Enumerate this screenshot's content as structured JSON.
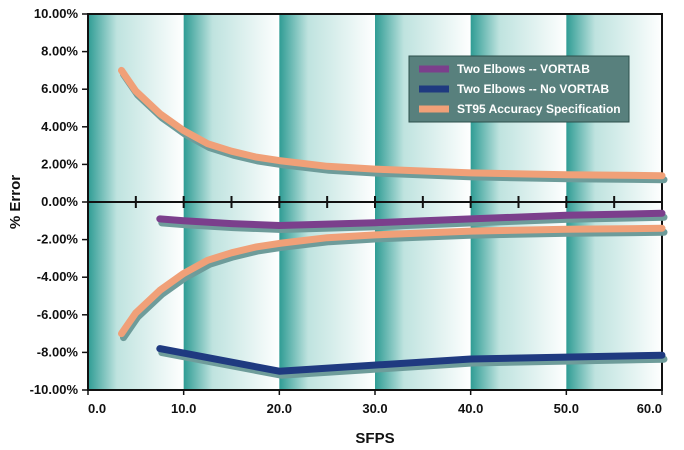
{
  "chart_data": {
    "type": "line",
    "title": "",
    "xlabel": "SFPS",
    "ylabel": "% Error",
    "xlim": [
      0,
      60
    ],
    "ylim": [
      -10,
      10
    ],
    "x_ticks": [
      0,
      10,
      20,
      30,
      40,
      50,
      60
    ],
    "x_tick_labels": [
      "0.0",
      "10.0",
      "20.0",
      "30.0",
      "40.0",
      "50.0",
      "60.0"
    ],
    "y_ticks": [
      10,
      8,
      6,
      4,
      2,
      0,
      -2,
      -4,
      -6,
      -8,
      -10
    ],
    "y_tick_labels": [
      "10.00%",
      "8.00%",
      "6.00%",
      "4.00%",
      "2.00%",
      "0.00%",
      "-2.00%",
      "-4.00%",
      "-6.00%",
      "-8.00%",
      "-10.00%"
    ],
    "minor_zero_ticks": [
      5,
      10,
      15,
      20,
      25,
      30,
      35,
      40,
      45,
      50,
      55
    ],
    "grid": false,
    "background_bands": 6,
    "legend_position": "top-right",
    "series": [
      {
        "name": "Two Elbows -- VORTAB",
        "color": "#7b3f8c",
        "x": [
          7.5,
          10,
          15,
          20,
          30,
          40,
          50,
          60
        ],
        "y": [
          -0.9,
          -1.0,
          -1.15,
          -1.25,
          -1.1,
          -0.9,
          -0.7,
          -0.6
        ]
      },
      {
        "name": "Two Elbows -- No VORTAB",
        "color": "#1f3a80",
        "x": [
          7.5,
          20,
          40,
          60
        ],
        "y": [
          -7.8,
          -9.0,
          -8.35,
          -8.15
        ]
      },
      {
        "name": "ST95 Accuracy Specification",
        "color": "#f0a078",
        "x": [
          3.5,
          5,
          7.5,
          10,
          12.5,
          15,
          17.5,
          20,
          25,
          30,
          40,
          50,
          60
        ],
        "y": [
          7.0,
          5.9,
          4.7,
          3.8,
          3.1,
          2.7,
          2.4,
          2.2,
          1.9,
          1.75,
          1.55,
          1.45,
          1.4
        ],
        "mirror": true
      }
    ]
  }
}
